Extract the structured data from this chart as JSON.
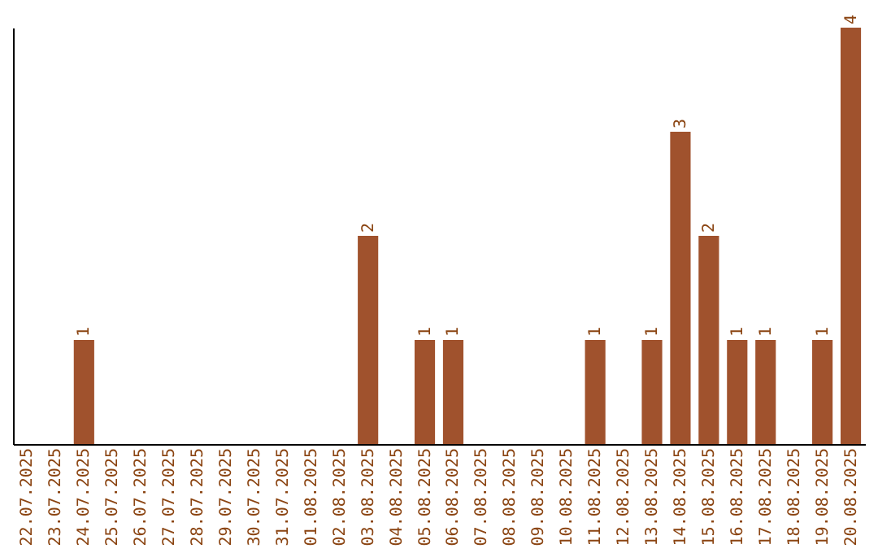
{
  "chart_data": {
    "type": "bar",
    "categories": [
      "22.07.2025",
      "23.07.2025",
      "24.07.2025",
      "25.07.2025",
      "26.07.2025",
      "27.07.2025",
      "28.07.2025",
      "29.07.2025",
      "30.07.2025",
      "31.07.2025",
      "01.08.2025",
      "02.08.2025",
      "03.08.2025",
      "04.08.2025",
      "05.08.2025",
      "06.08.2025",
      "07.08.2025",
      "08.08.2025",
      "09.08.2025",
      "10.08.2025",
      "11.08.2025",
      "12.08.2025",
      "13.08.2025",
      "14.08.2025",
      "15.08.2025",
      "16.08.2025",
      "17.08.2025",
      "18.08.2025",
      "19.08.2025",
      "20.08.2025"
    ],
    "values": [
      0,
      0,
      1,
      0,
      0,
      0,
      0,
      0,
      0,
      0,
      0,
      0,
      2,
      0,
      1,
      1,
      0,
      0,
      0,
      0,
      1,
      0,
      1,
      3,
      2,
      1,
      1,
      0,
      1,
      4
    ],
    "value_labels": [
      null,
      null,
      "1",
      null,
      null,
      null,
      null,
      null,
      null,
      null,
      null,
      null,
      "2",
      null,
      "1",
      "1",
      null,
      null,
      null,
      null,
      "1",
      null,
      "1",
      "3",
      "2",
      "1",
      "1",
      null,
      "1",
      "4"
    ],
    "color": "#a0522d",
    "tick_labels": "x",
    "grid": false
  }
}
